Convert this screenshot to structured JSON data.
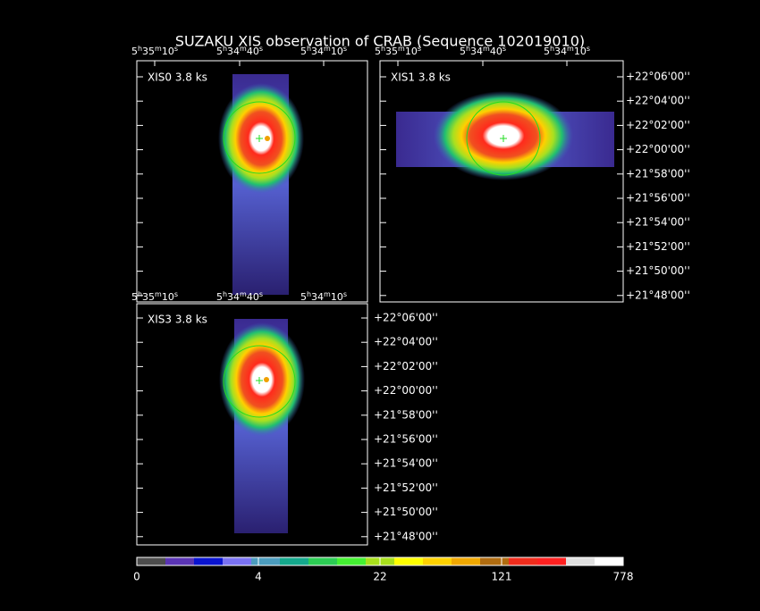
{
  "title": "SUZAKU XIS observation of CRAB  (Sequence 102019010)",
  "panels": [
    {
      "label": "XIS0 3.8 ks",
      "ra_labels": [
        "5h35m10s",
        "5h34m40s",
        "5h34m10s"
      ],
      "ra_bottom_labels": [
        "5h35m10s",
        "5h34m40s",
        "5h34m10s"
      ]
    },
    {
      "label": "XIS1 3.8 ks",
      "ra_labels": [
        "5h35m10s",
        "5h34m40s",
        "5h34m10s"
      ],
      "dec_labels": [
        "+22°06'00''",
        "+22°04'00''",
        "+22°02'00''",
        "+22°00'00''",
        "+21°58'00''",
        "+21°56'00''",
        "+21°54'00''",
        "+21°52'00''",
        "+21°50'00''",
        "+21°48'00''"
      ]
    },
    {
      "label": "XIS3 3.8 ks",
      "dec_labels": [
        "+22°06'00''",
        "+22°04'00''",
        "+22°02'00''",
        "+22°00'00''",
        "+21°58'00''",
        "+21°56'00''",
        "+21°54'00''",
        "+21°52'00''",
        "+21°50'00''",
        "+21°48'00''"
      ]
    }
  ],
  "colorbar": {
    "colors": [
      "#4d4d4d",
      "#5a34b4",
      "#0a14d0",
      "#7a72f2",
      "#4b9cbe",
      "#14a88c",
      "#2ccc54",
      "#44f032",
      "#a8e01c",
      "#ffff00",
      "#ffd200",
      "#f0a800",
      "#b06c10",
      "#f02c1c",
      "#ff2020",
      "#e0e0e0",
      "#ffffff"
    ],
    "labels": [
      0,
      4,
      22,
      121,
      778
    ]
  }
}
